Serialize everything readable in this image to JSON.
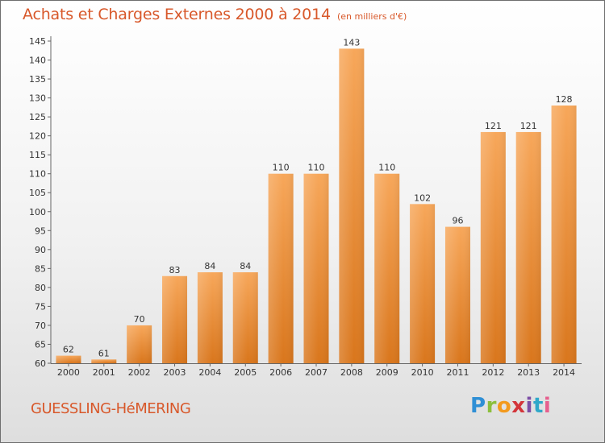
{
  "chart_data": {
    "type": "bar",
    "title": "Achats et Charges Externes 2000 à 2014",
    "subtitle": "(en milliers d'€)",
    "categories": [
      "2000",
      "2001",
      "2002",
      "2003",
      "2004",
      "2005",
      "2006",
      "2007",
      "2008",
      "2009",
      "2010",
      "2011",
      "2012",
      "2013",
      "2014"
    ],
    "values": [
      62,
      61,
      70,
      83,
      84,
      84,
      110,
      110,
      143,
      110,
      102,
      96,
      121,
      121,
      128
    ],
    "data_labels": [
      "62",
      "61",
      "70",
      "83",
      "84",
      "84",
      "110",
      "110",
      "143",
      "110",
      "102",
      "96",
      "121",
      "121",
      "128"
    ],
    "ylim": [
      60,
      145
    ],
    "yticks": [
      60,
      65,
      70,
      75,
      80,
      85,
      90,
      95,
      100,
      105,
      110,
      115,
      120,
      125,
      130,
      135,
      140,
      145
    ],
    "xlabel": "",
    "ylabel": "",
    "grid": false,
    "legend": "none",
    "bar_color": "#f0923a"
  },
  "footer": {
    "location": "GUESSLING-HéMERING",
    "brand_letters": [
      "P",
      "r",
      "o",
      "x",
      "i",
      "t",
      "i"
    ]
  },
  "colors": {
    "title": "#d8582a",
    "bar_top": "#f7a75a",
    "bar_bottom": "#d9761c"
  }
}
